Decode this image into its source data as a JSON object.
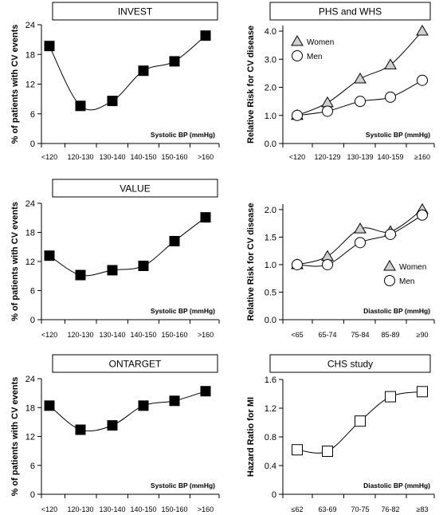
{
  "chart_data": [
    {
      "type": "line",
      "title": "INVEST",
      "ylabel": "% of patients with CV events",
      "xlabel": "Systolic BP (mmHg)",
      "categories": [
        "<120",
        "120-130",
        "130-140",
        "140-150",
        "150-160",
        ">160"
      ],
      "yticks": [
        "0",
        "6",
        "12",
        "18",
        "24"
      ],
      "ylim": [
        0,
        24
      ],
      "series": [
        {
          "marker": "filled-square",
          "values": [
            19.7,
            7.6,
            8.6,
            14.7,
            16.6,
            21.8
          ]
        }
      ]
    },
    {
      "type": "line",
      "title": "PHS and WHS",
      "ylabel": "Relative Risk for CV disease",
      "xlabel": "Systolic BP (mmHg)",
      "categories": [
        "<120",
        "120-129",
        "130-139",
        "140-159",
        "≥160"
      ],
      "yticks": [
        "0.0",
        "1.0",
        "2.0",
        "3.0",
        "4.0"
      ],
      "ylim": [
        0,
        4.2
      ],
      "legend_position": "top-left",
      "series": [
        {
          "name": "Women",
          "marker": "open-triangle",
          "values": [
            1.0,
            1.45,
            2.3,
            2.8,
            4.0
          ]
        },
        {
          "name": "Men",
          "marker": "open-circle",
          "values": [
            1.0,
            1.15,
            1.5,
            1.65,
            2.25
          ]
        }
      ]
    },
    {
      "type": "line",
      "title": "VALUE",
      "ylabel": "% of patients with CV events",
      "xlabel": "Systolic BP (mmHg)",
      "categories": [
        "<120",
        "120-130",
        "130-140",
        "140-150",
        "150-160",
        ">160"
      ],
      "yticks": [
        "0",
        "6",
        "12",
        "18",
        "24"
      ],
      "ylim": [
        0,
        24
      ],
      "series": [
        {
          "marker": "filled-square",
          "values": [
            13.2,
            9.2,
            10.2,
            11.1,
            16.2,
            21.1
          ]
        }
      ]
    },
    {
      "type": "line",
      "title": "",
      "ylabel": "Relative Risk for CV disease",
      "xlabel": "Diastolic BP (mmHg)",
      "categories": [
        "<65",
        "65-74",
        "75-84",
        "85-89",
        "≥90"
      ],
      "yticks": [
        "0.0",
        "0.5",
        "1.0",
        "1.5",
        "2.0"
      ],
      "ylim": [
        0,
        2.1
      ],
      "legend_position": "bottom-right",
      "series": [
        {
          "name": "Women",
          "marker": "open-triangle",
          "values": [
            1.0,
            1.15,
            1.65,
            1.6,
            2.0
          ]
        },
        {
          "name": "Men",
          "marker": "open-circle",
          "values": [
            1.0,
            1.0,
            1.4,
            1.55,
            1.9
          ]
        }
      ]
    },
    {
      "type": "line",
      "title": "ONTARGET",
      "ylabel": "% of patients with CV events",
      "xlabel": "Systolic BP (mmHg)",
      "categories": [
        "<120",
        "120-130",
        "130-140",
        "140-150",
        "150-160",
        ">160"
      ],
      "yticks": [
        "0",
        "6",
        "12",
        "18",
        "24"
      ],
      "ylim": [
        0,
        24
      ],
      "series": [
        {
          "marker": "filled-square",
          "values": [
            18.4,
            13.4,
            14.3,
            18.4,
            19.4,
            21.4
          ]
        }
      ]
    },
    {
      "type": "line",
      "title": "CHS study",
      "ylabel": "Hazard Ratio for MI",
      "xlabel": "Diastolic BP (mmHg)",
      "categories": [
        "≤62",
        "63-69",
        "70-75",
        "76-82",
        "≥83"
      ],
      "yticks": [
        "0",
        "0.4",
        "0.8",
        "1.2",
        "1.6"
      ],
      "ylim": [
        0,
        1.6
      ],
      "series": [
        {
          "marker": "open-square",
          "values": [
            0.62,
            0.6,
            1.02,
            1.36,
            1.43
          ]
        }
      ]
    }
  ]
}
